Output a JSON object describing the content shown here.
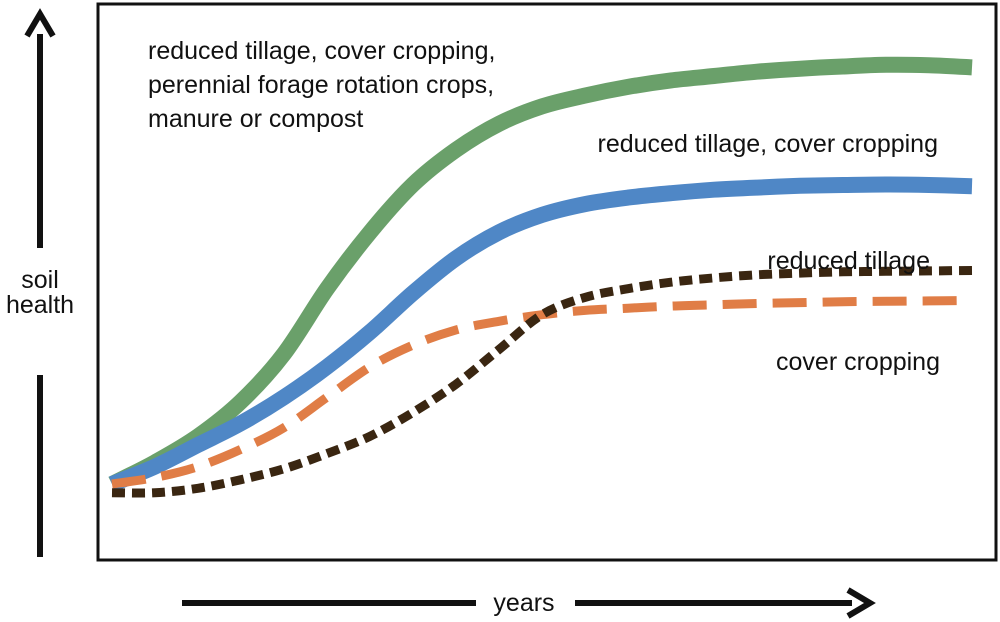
{
  "chart_data": {
    "type": "line",
    "xlabel": "years",
    "ylabel": [
      "soil",
      "health"
    ],
    "xlim": [
      0,
      100
    ],
    "ylim": [
      0,
      100
    ],
    "axis_tick_labels": false,
    "grid": false,
    "legend": "labels placed next to curves",
    "series": [
      {
        "name": "reduced tillage, cover cropping, perennial forage rotation crops, manure or compost",
        "label_lines": [
          "reduced tillage, cover cropping,",
          "perennial forage rotation crops,",
          "manure or compost"
        ],
        "color": "#6aa06a",
        "style": "solid",
        "x": [
          0,
          5,
          10,
          15,
          20,
          25,
          30,
          35,
          40,
          45,
          50,
          55,
          60,
          65,
          70,
          75,
          80,
          85,
          90,
          95,
          100
        ],
        "y": [
          0,
          5,
          11,
          19,
          30,
          45,
          58,
          69,
          77,
          83,
          87,
          89.5,
          91.5,
          93,
          94,
          95,
          95.7,
          96.2,
          96.6,
          96.5,
          96
        ]
      },
      {
        "name": "reduced tillage, cover cropping",
        "label_lines": [
          "reduced tillage, cover cropping"
        ],
        "color": "#4f87c6",
        "style": "solid",
        "x": [
          0,
          5,
          10,
          15,
          20,
          25,
          30,
          35,
          40,
          45,
          50,
          55,
          60,
          65,
          70,
          75,
          80,
          85,
          90,
          95,
          100
        ],
        "y": [
          0,
          4,
          9,
          14,
          20,
          27,
          35,
          44,
          52,
          58,
          62,
          64.5,
          66,
          67,
          67.8,
          68.3,
          68.7,
          68.9,
          69,
          68.9,
          68.6
        ]
      },
      {
        "name": "reduced tillage",
        "label_lines": [
          "reduced tillage"
        ],
        "color": "#3a2611",
        "style": "dotted",
        "x": [
          0,
          5,
          10,
          15,
          20,
          25,
          30,
          35,
          40,
          45,
          50,
          55,
          60,
          65,
          70,
          75,
          80,
          85,
          90,
          95,
          100
        ],
        "y": [
          -2,
          -2,
          -1,
          1,
          3.5,
          7,
          11,
          16.5,
          23,
          31,
          39,
          43,
          45,
          46.5,
          47.5,
          48.2,
          48.6,
          48.9,
          49,
          49.1,
          49.2
        ]
      },
      {
        "name": "cover cropping",
        "label_lines": [
          "cover cropping"
        ],
        "color": "#e07d46",
        "style": "dashed",
        "x": [
          0,
          5,
          10,
          15,
          20,
          25,
          30,
          35,
          40,
          45,
          50,
          55,
          60,
          65,
          70,
          75,
          80,
          85,
          90,
          95,
          100
        ],
        "y": [
          0,
          1.5,
          4,
          8,
          13,
          20,
          27,
          32,
          35.5,
          37.5,
          39,
          40,
          40.5,
          41,
          41.3,
          41.6,
          41.8,
          42,
          42.1,
          42.2,
          42.3
        ]
      }
    ]
  }
}
